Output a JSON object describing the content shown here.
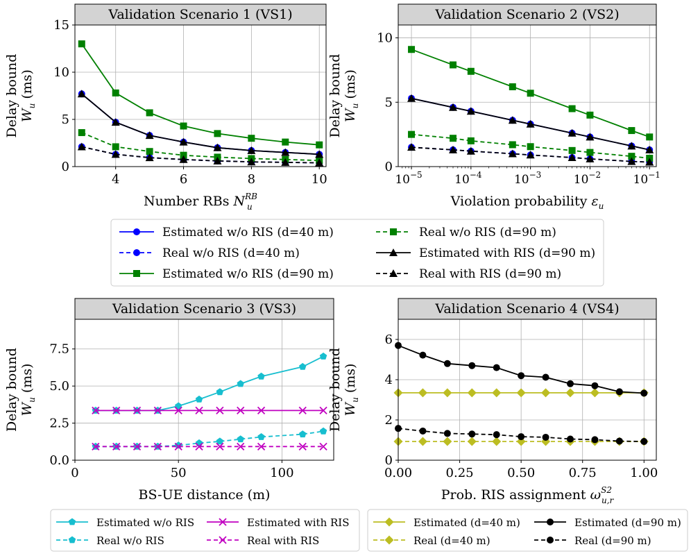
{
  "chart_data": [
    {
      "type": "line",
      "title": "Validation Scenario 1 (VS1)",
      "xlabel": "Number RBs ",
      "xlabel_sym": "N",
      "xlabel_sub": "u",
      "xlabel_sup": "RB",
      "ylabel_line1": "Delay bound",
      "ylabel_sym": "W",
      "ylabel_sub": "u",
      "ylabel_unit": " (ms)",
      "xscale": "linear",
      "xlim": [
        2.8,
        10.2
      ],
      "ylim": [
        0,
        15
      ],
      "xticks": [
        4,
        6,
        8,
        10
      ],
      "xtick_labels": [
        "4",
        "6",
        "8",
        "10"
      ],
      "yticks": [
        0,
        5,
        10,
        15
      ],
      "ytick_labels": [
        "0",
        "5",
        "10",
        "15"
      ],
      "x": [
        3,
        4,
        5,
        6,
        7,
        8,
        9,
        10
      ],
      "series": [
        {
          "name": "Estimated w/o RIS (d=40 m)",
          "color": "#0000ff",
          "dash": "solid",
          "marker": "circle",
          "values": [
            7.7,
            4.7,
            3.3,
            2.6,
            2.0,
            1.7,
            1.5,
            1.3
          ]
        },
        {
          "name": "Real w/o RIS (d=40 m)",
          "color": "#0000ff",
          "dash": "dashed",
          "marker": "circle",
          "values": [
            2.1,
            1.3,
            0.95,
            0.75,
            0.6,
            0.5,
            0.45,
            0.4
          ]
        },
        {
          "name": "Estimated w/o RIS (d=90 m)",
          "color": "#008000",
          "dash": "solid",
          "marker": "square",
          "values": [
            13.0,
            7.8,
            5.7,
            4.3,
            3.5,
            3.0,
            2.6,
            2.3
          ]
        },
        {
          "name": "Real w/o RIS (d=90 m)",
          "color": "#008000",
          "dash": "dashed",
          "marker": "square",
          "values": [
            3.6,
            2.1,
            1.6,
            1.2,
            1.0,
            0.85,
            0.75,
            0.65
          ]
        },
        {
          "name": "Estimated with RIS (d=90 m)",
          "color": "#000000",
          "dash": "solid",
          "marker": "triangle",
          "values": [
            7.7,
            4.7,
            3.3,
            2.6,
            2.0,
            1.7,
            1.5,
            1.3
          ]
        },
        {
          "name": "Real with RIS (d=90 m)",
          "color": "#000000",
          "dash": "dashed",
          "marker": "triangle",
          "values": [
            2.1,
            1.3,
            0.95,
            0.75,
            0.6,
            0.5,
            0.45,
            0.4
          ]
        }
      ]
    },
    {
      "type": "line",
      "title": "Validation Scenario 2 (VS2)",
      "xlabel": "Violation probability ",
      "xlabel_sym": "ε",
      "xlabel_sub": "u",
      "xlabel_sup": "",
      "ylabel_line1": "Delay bound",
      "ylabel_sym": "W",
      "ylabel_sub": "u",
      "ylabel_unit": " (ms)",
      "xscale": "log",
      "xlim": [
        6e-06,
        0.13
      ],
      "ylim": [
        0,
        11
      ],
      "xticks": [
        1e-05,
        0.0001,
        0.001,
        0.01,
        0.1
      ],
      "xtick_labels": [
        "10",
        "10",
        "10",
        "10",
        "10"
      ],
      "xtick_exps": [
        "−5",
        "−4",
        "−3",
        "−2",
        "−1"
      ],
      "yticks": [
        0,
        5,
        10
      ],
      "ytick_labels": [
        "0",
        "5",
        "10"
      ],
      "x": [
        1e-05,
        5e-05,
        0.0001,
        0.0005,
        0.001,
        0.005,
        0.01,
        0.05,
        0.1
      ],
      "series": [
        {
          "name": "Estimated w/o RIS (d=40 m)",
          "color": "#0000ff",
          "dash": "solid",
          "marker": "circle",
          "values": [
            5.3,
            4.6,
            4.3,
            3.6,
            3.3,
            2.6,
            2.3,
            1.6,
            1.3
          ]
        },
        {
          "name": "Real w/o RIS (d=40 m)",
          "color": "#0000ff",
          "dash": "dashed",
          "marker": "circle",
          "values": [
            1.5,
            1.3,
            1.2,
            1.0,
            0.9,
            0.7,
            0.6,
            0.4,
            0.35
          ]
        },
        {
          "name": "Estimated w/o RIS (d=90 m)",
          "color": "#008000",
          "dash": "solid",
          "marker": "square",
          "values": [
            9.1,
            7.9,
            7.4,
            6.2,
            5.7,
            4.5,
            4.0,
            2.8,
            2.3
          ]
        },
        {
          "name": "Real w/o RIS (d=90 m)",
          "color": "#008000",
          "dash": "dashed",
          "marker": "square",
          "values": [
            2.5,
            2.2,
            2.0,
            1.7,
            1.55,
            1.25,
            1.1,
            0.8,
            0.65
          ]
        },
        {
          "name": "Estimated with RIS (d=90 m)",
          "color": "#000000",
          "dash": "solid",
          "marker": "triangle",
          "values": [
            5.3,
            4.6,
            4.3,
            3.6,
            3.3,
            2.6,
            2.3,
            1.6,
            1.3
          ]
        },
        {
          "name": "Real with RIS (d=90 m)",
          "color": "#000000",
          "dash": "dashed",
          "marker": "triangle",
          "values": [
            1.5,
            1.3,
            1.2,
            1.0,
            0.9,
            0.7,
            0.6,
            0.4,
            0.35
          ]
        }
      ]
    },
    {
      "type": "line",
      "title": "Validation Scenario 3 (VS3)",
      "xlabel": "BS-UE distance (m)",
      "xlabel_sym": "",
      "xlabel_sub": "",
      "xlabel_sup": "",
      "ylabel_line1": "Delay bound",
      "ylabel_sym": "W",
      "ylabel_sub": "u",
      "ylabel_unit": " (ms)",
      "xscale": "linear",
      "xlim": [
        0,
        125
      ],
      "ylim": [
        0,
        9.5
      ],
      "xticks": [
        0,
        50,
        100
      ],
      "xtick_labels": [
        "0",
        "50",
        "100"
      ],
      "yticks": [
        0,
        2.5,
        5,
        7.5
      ],
      "ytick_labels": [
        "0.0",
        "2.5",
        "5.0",
        "7.5"
      ],
      "x": [
        10,
        20,
        30,
        40,
        50,
        60,
        70,
        80,
        90,
        110,
        120
      ],
      "series": [
        {
          "name": "Estimated w/o RIS",
          "color": "#17becf",
          "dash": "solid",
          "marker": "pentagon",
          "values": [
            3.35,
            3.35,
            3.35,
            3.35,
            3.65,
            4.1,
            4.6,
            5.15,
            5.65,
            6.3,
            7.0
          ]
        },
        {
          "name": "Real w/o RIS",
          "color": "#17becf",
          "dash": "dashed",
          "marker": "pentagon",
          "values": [
            0.92,
            0.92,
            0.92,
            0.92,
            1.0,
            1.15,
            1.27,
            1.42,
            1.57,
            1.75,
            1.95
          ]
        },
        {
          "name": "Estimated with RIS",
          "color": "#c000c0",
          "dash": "solid",
          "marker": "x",
          "values": [
            3.35,
            3.35,
            3.35,
            3.35,
            3.35,
            3.35,
            3.35,
            3.35,
            3.35,
            3.35,
            3.35
          ]
        },
        {
          "name": "Real with RIS",
          "color": "#c000c0",
          "dash": "dashed",
          "marker": "x",
          "values": [
            0.92,
            0.92,
            0.92,
            0.92,
            0.92,
            0.92,
            0.92,
            0.92,
            0.92,
            0.92,
            0.92
          ]
        }
      ]
    },
    {
      "type": "line",
      "title": "Validation Scenario 4 (VS4)",
      "xlabel": "Prob. RIS assignment ",
      "xlabel_sym": "ω",
      "xlabel_sub": "u,r",
      "xlabel_sup": "S2",
      "ylabel_line1": "Delay bound",
      "ylabel_sym": "W",
      "ylabel_sub": "u",
      "ylabel_unit": " (ms)",
      "xscale": "linear",
      "xlim": [
        0,
        1.05
      ],
      "ylim": [
        0,
        7
      ],
      "xticks": [
        0,
        0.25,
        0.5,
        0.75,
        1.0
      ],
      "xtick_labels": [
        "0.00",
        "0.25",
        "0.50",
        "0.75",
        "1.00"
      ],
      "yticks": [
        0,
        2,
        4,
        6
      ],
      "ytick_labels": [
        "0",
        "2",
        "4",
        "6"
      ],
      "x": [
        0,
        0.1,
        0.2,
        0.3,
        0.4,
        0.5,
        0.6,
        0.7,
        0.8,
        0.9,
        1.0
      ],
      "series": [
        {
          "name": "Estimated (d=40 m)",
          "color": "#bcbd22",
          "dash": "solid",
          "marker": "diamond",
          "values": [
            3.35,
            3.35,
            3.35,
            3.35,
            3.35,
            3.35,
            3.35,
            3.35,
            3.35,
            3.35,
            3.35
          ]
        },
        {
          "name": "Real (d=40 m)",
          "color": "#bcbd22",
          "dash": "dashed",
          "marker": "diamond",
          "values": [
            0.93,
            0.93,
            0.93,
            0.93,
            0.93,
            0.93,
            0.93,
            0.93,
            0.93,
            0.93,
            0.93
          ]
        },
        {
          "name": "Estimated (d=90 m)",
          "color": "#000000",
          "dash": "solid",
          "marker": "circle",
          "values": [
            5.7,
            5.22,
            4.8,
            4.7,
            4.6,
            4.2,
            4.12,
            3.8,
            3.7,
            3.4,
            3.33
          ]
        },
        {
          "name": "Real (d=90 m)",
          "color": "#000000",
          "dash": "dashed",
          "marker": "circle",
          "values": [
            1.58,
            1.45,
            1.33,
            1.3,
            1.27,
            1.17,
            1.14,
            1.05,
            1.02,
            0.95,
            0.93
          ]
        }
      ]
    }
  ],
  "legends": [
    {
      "columns": [
        [
          "Estimated w/o RIS (d=40 m)",
          "Real w/o RIS (d=40 m)",
          "Estimated w/o RIS (d=90 m)"
        ],
        [
          "Real w/o RIS (d=90 m)",
          "Estimated with RIS (d=90 m)",
          "Real with RIS (d=90 m)"
        ]
      ]
    },
    {
      "columns": [
        [
          "Estimated w/o RIS",
          "Real w/o RIS"
        ],
        [
          "Estimated with RIS",
          "Real with RIS"
        ]
      ]
    },
    {
      "columns": [
        [
          "Estimated (d=40 m)",
          "Real (d=40 m)"
        ],
        [
          "Estimated (d=90 m)",
          "Real (d=90 m)"
        ]
      ]
    }
  ]
}
